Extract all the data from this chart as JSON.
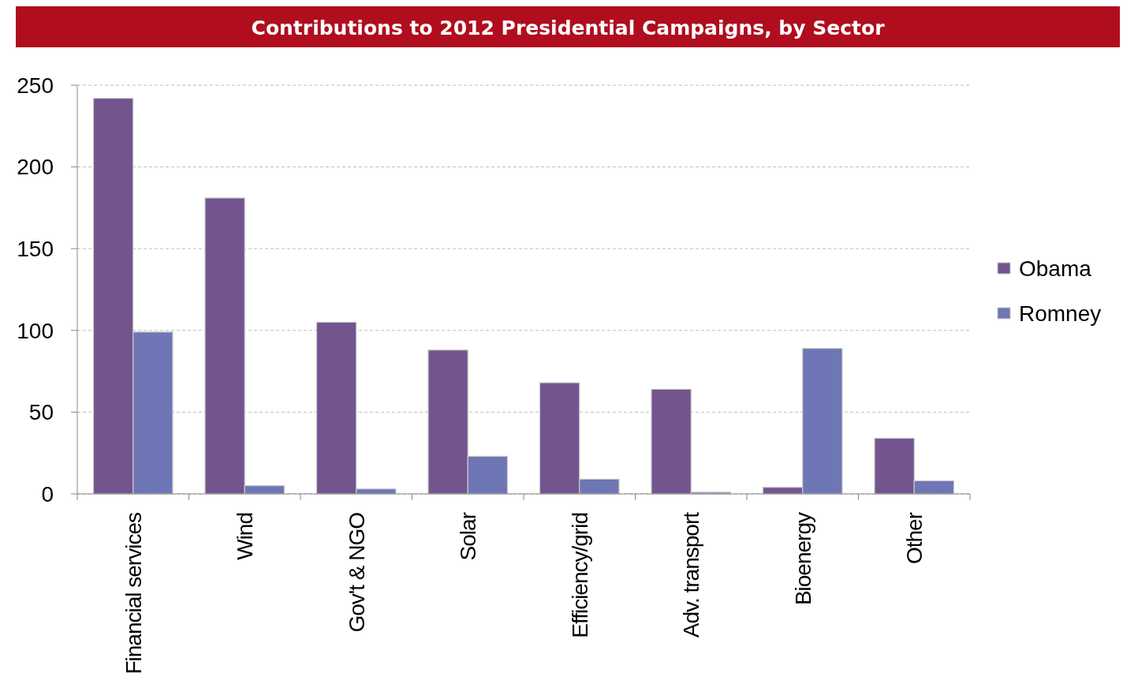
{
  "chart_data": {
    "type": "bar",
    "title": "Contributions to 2012 Presidential Campaigns, by Sector",
    "categories": [
      "Financial services",
      "Wind",
      "Gov't & NGO",
      "Solar",
      "Efficiency/grid",
      "Adv. transport",
      "Bioenergy",
      "Other"
    ],
    "series": [
      {
        "name": "Obama",
        "color": "#73548f",
        "values": [
          242,
          181,
          105,
          88,
          68,
          64,
          4,
          34
        ]
      },
      {
        "name": "Romney",
        "color": "#6f76b5",
        "values": [
          99,
          5,
          3,
          23,
          9,
          1,
          89,
          8
        ]
      }
    ],
    "ylim": [
      0,
      250
    ],
    "yticks": [
      0,
      50,
      100,
      150,
      200,
      250
    ],
    "grid": "y",
    "legend": "right"
  }
}
